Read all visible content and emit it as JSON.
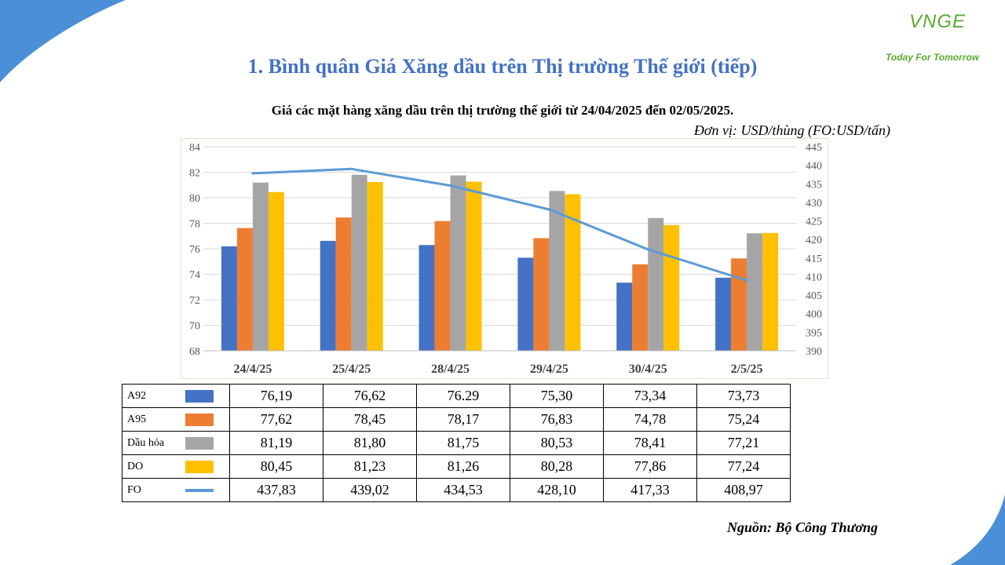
{
  "slide": {
    "title": "1. Bình quân Giá Xăng dầu trên Thị trường Thế giới (tiếp)",
    "logo_mark": "VNGE",
    "logo_tagline": "Today For Tomorrow",
    "source": "Nguồn: Bộ Công Thương"
  },
  "chart_data": {
    "type": "bar",
    "subtitle": "Giá các mặt hàng xăng dầu trên thị trường thế giới từ 24/04/2025 đến 02/05/2025.",
    "unit": "Đơn vị:  USD/thùng (FO:USD/tấn)",
    "categories": [
      "24/4/25",
      "25/4/25",
      "28/4/25",
      "29/4/25",
      "30/4/25",
      "2/5/25"
    ],
    "ylim": [
      68,
      84
    ],
    "y_ticks": [
      "68",
      "70",
      "72",
      "74",
      "76",
      "78",
      "80",
      "82",
      "84"
    ],
    "y2lim": [
      390,
      445
    ],
    "y2_ticks": [
      "390",
      "395",
      "400",
      "405",
      "410",
      "415",
      "420",
      "425",
      "430",
      "435",
      "440",
      "445"
    ],
    "grid": true,
    "legend": "table-below",
    "series": [
      {
        "name": "A92",
        "kind": "bar",
        "axis": "left",
        "color": "#4472c4",
        "values": [
          76.19,
          76.62,
          76.29,
          75.3,
          73.34,
          73.73
        ],
        "labels": [
          "76,19",
          "76,62",
          "76.29",
          "75,30",
          "73,34",
          "73,73"
        ]
      },
      {
        "name": "A95",
        "kind": "bar",
        "axis": "left",
        "color": "#ed7d31",
        "values": [
          77.62,
          78.45,
          78.17,
          76.83,
          74.78,
          75.24
        ],
        "labels": [
          "77,62",
          "78,45",
          "78,17",
          "76,83",
          "74,78",
          "75,24"
        ]
      },
      {
        "name": "Dầu hỏa",
        "kind": "bar",
        "axis": "left",
        "color": "#a5a5a5",
        "values": [
          81.19,
          81.8,
          81.75,
          80.53,
          78.41,
          77.21
        ],
        "labels": [
          "81,19",
          "81,80",
          "81,75",
          "80,53",
          "78,41",
          "77,21"
        ]
      },
      {
        "name": "DO",
        "kind": "bar",
        "axis": "left",
        "color": "#ffc000",
        "values": [
          80.45,
          81.23,
          81.26,
          80.28,
          77.86,
          77.24
        ],
        "labels": [
          "80,45",
          "81,23",
          "81,26",
          "80,28",
          "77,86",
          "77,24"
        ]
      },
      {
        "name": "FO",
        "kind": "line",
        "axis": "right",
        "color": "#5b9bd5",
        "values": [
          437.83,
          439.02,
          434.53,
          428.1,
          417.33,
          408.97
        ],
        "labels": [
          "437,83",
          "439,02",
          "434,53",
          "428,10",
          "417,33",
          "408,97"
        ]
      }
    ]
  }
}
